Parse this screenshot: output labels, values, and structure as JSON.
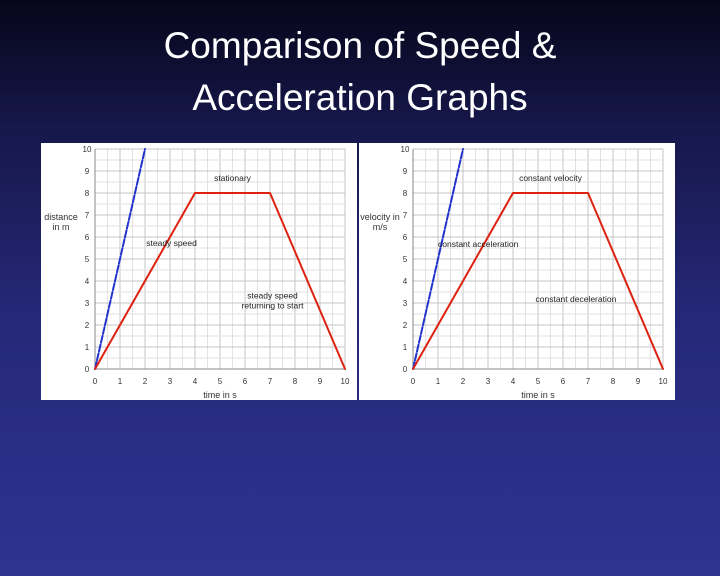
{
  "slide": {
    "title_line1": "Comparison of Speed &",
    "title_line2": "Acceleration Graphs"
  },
  "chart_data": [
    {
      "type": "line",
      "title": "",
      "xlabel": "time in s",
      "ylabel_lines": [
        "distance",
        "in m"
      ],
      "xlim": [
        0,
        10
      ],
      "ylim": [
        0,
        10
      ],
      "xticks": [
        0,
        1,
        2,
        3,
        4,
        5,
        6,
        7,
        8,
        9,
        10
      ],
      "yticks": [
        0,
        1,
        2,
        3,
        4,
        5,
        6,
        7,
        8,
        9,
        10
      ],
      "grid": true,
      "series": [
        {
          "color": "#2233cc",
          "style": "dashed",
          "x": [
            0,
            2
          ],
          "y": [
            0,
            10
          ]
        },
        {
          "color": "#dd2211",
          "style": "solid",
          "x": [
            0,
            4,
            7,
            10
          ],
          "y": [
            0,
            8,
            8,
            0
          ]
        }
      ],
      "annotations": [
        {
          "lines": [
            "stationary"
          ],
          "x": 5.5,
          "y": 8.55
        },
        {
          "lines": [
            "steady speed"
          ],
          "x": 2.05,
          "y": 5.6
        },
        {
          "lines": [
            "steady speed",
            "returning to start"
          ],
          "x": 7.1,
          "y": 3.2
        }
      ]
    },
    {
      "type": "line",
      "title": "",
      "xlabel": "time in s",
      "ylabel_lines": [
        "velocity in",
        "m/s"
      ],
      "xlim": [
        0,
        10
      ],
      "ylim": [
        0,
        10
      ],
      "xticks": [
        0,
        1,
        2,
        3,
        4,
        5,
        6,
        7,
        8,
        9,
        10
      ],
      "yticks": [
        0,
        1,
        2,
        3,
        4,
        5,
        6,
        7,
        8,
        9,
        10
      ],
      "grid": true,
      "series": [
        {
          "color": "#2233cc",
          "style": "dashed",
          "x": [
            0,
            2
          ],
          "y": [
            0,
            10
          ]
        },
        {
          "color": "#dd2211",
          "style": "solid",
          "x": [
            0,
            4,
            7,
            10
          ],
          "y": [
            0,
            8,
            8,
            0
          ]
        }
      ],
      "annotations": [
        {
          "lines": [
            "constant velocity"
          ],
          "x": 5.5,
          "y": 8.55
        },
        {
          "lines": [
            "constant acceleration"
          ],
          "x": 1.0,
          "y": 5.55
        },
        {
          "lines": [
            "constant deceleration"
          ],
          "x": 4.9,
          "y": 3.05
        }
      ]
    }
  ]
}
